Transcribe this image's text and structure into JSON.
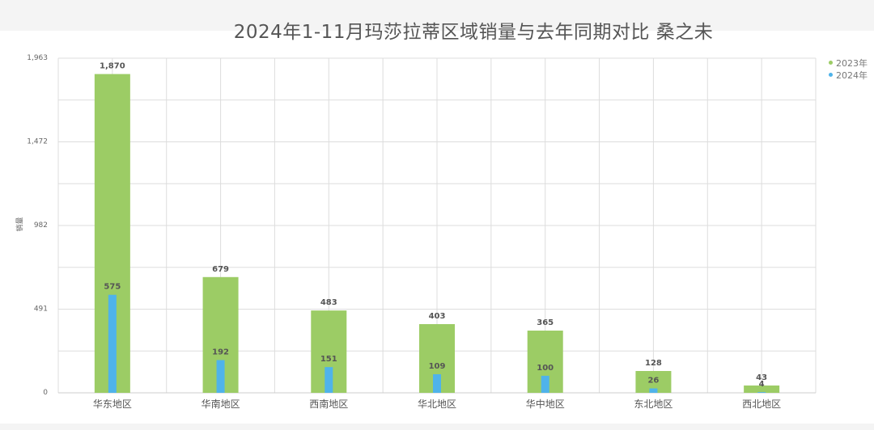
{
  "title": "2024年1-11月玛莎拉蒂区域销量与去年同期对比 桑之未",
  "chart_data": {
    "type": "bar",
    "title": "2024年1-11月玛莎拉蒂区域销量与去年同期对比 桑之未",
    "xlabel": "",
    "ylabel": "销量",
    "categories": [
      "华东地区",
      "华南地区",
      "西南地区",
      "华北地区",
      "华中地区",
      "东北地区",
      "西北地区"
    ],
    "series": [
      {
        "name": "2023年",
        "color": "#9ccc65",
        "values": [
          1870,
          679,
          483,
          403,
          365,
          128,
          43
        ]
      },
      {
        "name": "2024年",
        "color": "#4fb3ea",
        "values": [
          575,
          192,
          151,
          109,
          100,
          26,
          4
        ]
      }
    ],
    "yticks": [
      "0",
      "491",
      "982",
      "1,472",
      "1,963"
    ],
    "ylim": [
      0,
      1963
    ],
    "legend_position": "top-right",
    "grid": true
  }
}
